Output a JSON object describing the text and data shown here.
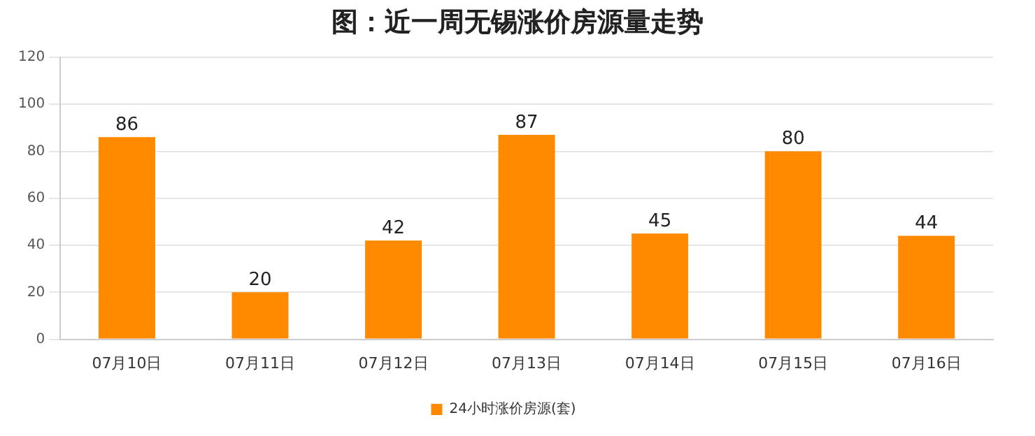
{
  "chart_data": {
    "type": "bar",
    "title": "图：近一周无锡涨价房源量走势",
    "categories": [
      "07月10日",
      "07月11日",
      "07月12日",
      "07月13日",
      "07月14日",
      "07月15日",
      "07月16日"
    ],
    "series": [
      {
        "name": "24小时涨价房源(套)",
        "color": "#ff8a00",
        "values": [
          86,
          20,
          42,
          87,
          45,
          80,
          44
        ]
      }
    ],
    "ylim": [
      0,
      120
    ],
    "yticks": [
      0,
      20,
      40,
      60,
      80,
      100,
      120
    ],
    "grid": "y",
    "legend": "bottom",
    "data_labels": true
  }
}
